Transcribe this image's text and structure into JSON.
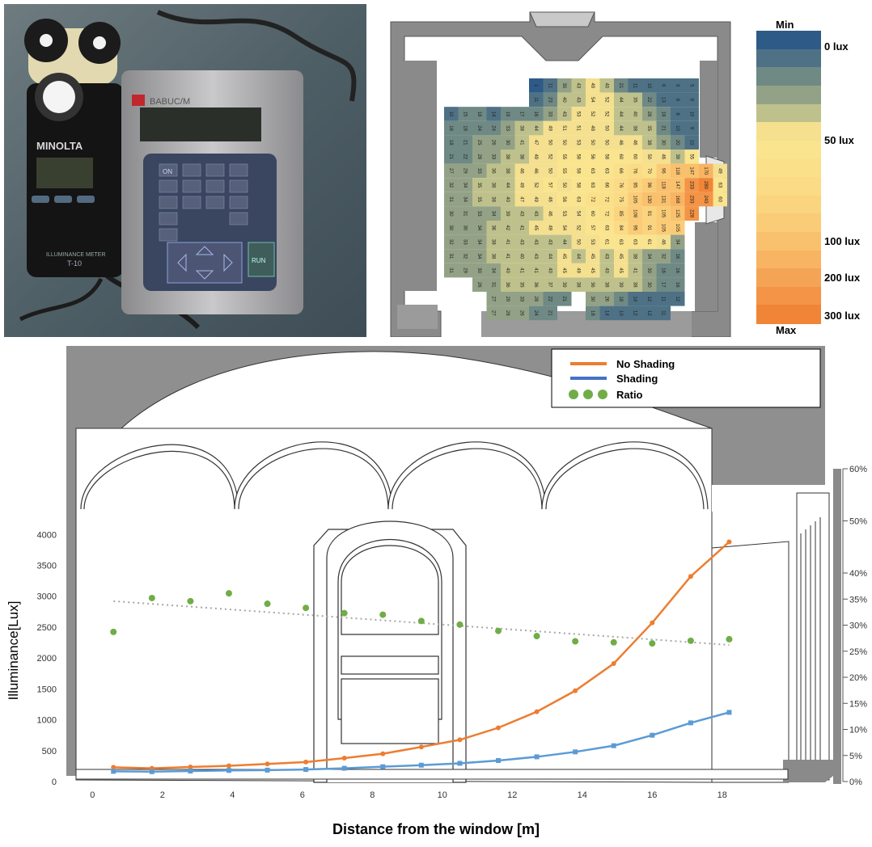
{
  "scale": {
    "min_label": "Min",
    "max_label": "Max",
    "ticks": [
      "0 lux",
      "50 lux",
      "100 lux",
      "200 lux",
      "300 lux"
    ],
    "colors": [
      "#2e5a88",
      "#4e7185",
      "#6f8985",
      "#93a286",
      "#bfc18c",
      "#f4e08f",
      "#fae48e",
      "#fbe08a",
      "#fbdb85",
      "#fbd47f",
      "#fbcc77",
      "#f9c16d",
      "#f8b462",
      "#f5a455",
      "#f39446",
      "#f08537"
    ]
  },
  "meter": {
    "brand_left": "MINOLTA",
    "model_left": "T-10",
    "brand_right": "BABUC/M",
    "button_top": "ON",
    "button_run": "RUN",
    "left_caption": "ILLUMINANCE METER"
  },
  "heatmap": {
    "grid": [
      [
        "",
        "",
        "",
        "",
        "",
        "",
        "1",
        "11",
        "30",
        "43",
        "49",
        "40",
        "21",
        "11",
        "10",
        "6",
        "9",
        "5",
        "",
        "",
        ""
      ],
      [
        "",
        "",
        "",
        "",
        "",
        "",
        "11",
        "23",
        "40",
        "43",
        "54",
        "52",
        "44",
        "35",
        "22",
        "13",
        "8",
        "9",
        "",
        "",
        ""
      ],
      [
        "10",
        "15",
        "18",
        "14",
        "19",
        "17",
        "16",
        "33",
        "43",
        "53",
        "52",
        "52",
        "44",
        "40",
        "28",
        "18",
        "8",
        "10",
        "",
        "",
        ""
      ],
      [
        "16",
        "18",
        "24",
        "24",
        "33",
        "38",
        "44",
        "49",
        "51",
        "51",
        "48",
        "50",
        "44",
        "38",
        "35",
        "21",
        "10",
        "9",
        "",
        "",
        ""
      ],
      [
        "18",
        "21",
        "25",
        "26",
        "30",
        "41",
        "47",
        "50",
        "50",
        "53",
        "50",
        "50",
        "46",
        "46",
        "38",
        "30",
        "20",
        "10",
        "",
        "",
        ""
      ],
      [
        "21",
        "22",
        "28",
        "33",
        "38",
        "38",
        "49",
        "52",
        "55",
        "58",
        "56",
        "58",
        "60",
        "60",
        "50",
        "46",
        "39",
        "55",
        "",
        "",
        ""
      ],
      [
        "27",
        "29",
        "33",
        "36",
        "38",
        "46",
        "46",
        "50",
        "55",
        "58",
        "63",
        "63",
        "66",
        "76",
        "70",
        "96",
        "118",
        "147",
        "170",
        "49",
        ""
      ],
      [
        "32",
        "34",
        "35",
        "38",
        "44",
        "49",
        "52",
        "57",
        "50",
        "58",
        "63",
        "66",
        "76",
        "85",
        "96",
        "118",
        "147",
        "233",
        "280",
        "63",
        ""
      ],
      [
        "31",
        "34",
        "35",
        "38",
        "40",
        "47",
        "49",
        "46",
        "56",
        "63",
        "72",
        "72",
        "75",
        "105",
        "130",
        "131",
        "168",
        "233",
        "243",
        "60",
        ""
      ],
      [
        "30",
        "31",
        "33",
        "34",
        "39",
        "43",
        "43",
        "46",
        "53",
        "54",
        "60",
        "72",
        "85",
        "108",
        "91",
        "105",
        "125",
        "228",
        "",
        "",
        ""
      ],
      [
        "30",
        "30",
        "34",
        "36",
        "42",
        "41",
        "45",
        "49",
        "54",
        "52",
        "57",
        "63",
        "84",
        "95",
        "91",
        "105",
        "105",
        "",
        "",
        "",
        ""
      ],
      [
        "32",
        "33",
        "34",
        "38",
        "41",
        "43",
        "43",
        "43",
        "44",
        "50",
        "53",
        "61",
        "63",
        "63",
        "61",
        "46",
        "34",
        "",
        "",
        "",
        ""
      ],
      [
        "31",
        "32",
        "34",
        "38",
        "41",
        "40",
        "43",
        "44",
        "45",
        "44",
        "45",
        "43",
        "45",
        "38",
        "34",
        "32",
        "16",
        "",
        "",
        "",
        ""
      ],
      [
        "31",
        "29",
        "30",
        "34",
        "40",
        "41",
        "41",
        "40",
        "45",
        "49",
        "45",
        "40",
        "45",
        "41",
        "30",
        "16",
        "16",
        "",
        "",
        "",
        ""
      ],
      [
        "",
        "",
        "26",
        "31",
        "36",
        "35",
        "36",
        "37",
        "39",
        "38",
        "36",
        "38",
        "39",
        "38",
        "30",
        "17",
        "16",
        "",
        "",
        "",
        ""
      ],
      [
        "",
        "",
        "",
        "27",
        "29",
        "33",
        "28",
        "22",
        "21",
        "",
        "30",
        "26",
        "18",
        "14",
        "12",
        "11",
        "12",
        "",
        "",
        "",
        ""
      ],
      [
        "",
        "",
        "",
        "27",
        "28",
        "26",
        "24",
        "21",
        "",
        "",
        "18",
        "14",
        "10",
        "12",
        "12",
        "11",
        "",
        "",
        "",
        "",
        ""
      ]
    ]
  },
  "chart_data": {
    "type": "line",
    "xlabel": "Distance from the  window [m]",
    "ylabel": "Illuminance[Lux]",
    "x_ticks": [
      "0",
      "2",
      "4",
      "6",
      "8",
      "10",
      "12",
      "14",
      "16",
      "18"
    ],
    "y_ticks": [
      "0",
      "500",
      "1000",
      "1500",
      "2000",
      "2500",
      "3000",
      "3500",
      "4000"
    ],
    "y2_ticks": [
      "0%",
      "5%",
      "10%",
      "15%",
      "20%",
      "25%",
      "30%",
      "35%",
      "40%",
      "50%",
      "60%"
    ],
    "xlim": [
      -0.4,
      19.6
    ],
    "ylim": [
      0,
      4200
    ],
    "y2lim": [
      0,
      0.6
    ],
    "legend_position": "top-right",
    "legend": [
      "No Shading",
      "Shading",
      "Ratio"
    ],
    "x": [
      0.6,
      1.7,
      2.8,
      3.9,
      5.0,
      6.1,
      7.2,
      8.3,
      9.4,
      10.5,
      11.6,
      12.7,
      13.8,
      14.9,
      16.0,
      17.1,
      18.2
    ],
    "series": [
      {
        "name": "No Shading",
        "axis": "left",
        "color": "#ed7d31",
        "marker": "circle",
        "values": [
          230,
          215,
          235,
          255,
          285,
          315,
          380,
          450,
          560,
          675,
          870,
          1130,
          1470,
          1910,
          2570,
          3320,
          3880
        ]
      },
      {
        "name": "Shading",
        "axis": "left",
        "color": "#5b9bd5",
        "marker": "square",
        "values": [
          165,
          160,
          170,
          180,
          185,
          195,
          215,
          240,
          265,
          295,
          340,
          400,
          480,
          580,
          750,
          950,
          1120
        ]
      },
      {
        "name": "Ratio",
        "axis": "right",
        "color": "#70ad47",
        "marker": "dot",
        "values": [
          0.287,
          0.352,
          0.346,
          0.361,
          0.341,
          0.333,
          0.323,
          0.32,
          0.308,
          0.301,
          0.289,
          0.279,
          0.269,
          0.267,
          0.265,
          0.27,
          0.273
        ]
      }
    ],
    "trendline": {
      "series": "Ratio",
      "color": "#a6a6a6",
      "start": 0.346,
      "end": 0.262
    }
  }
}
